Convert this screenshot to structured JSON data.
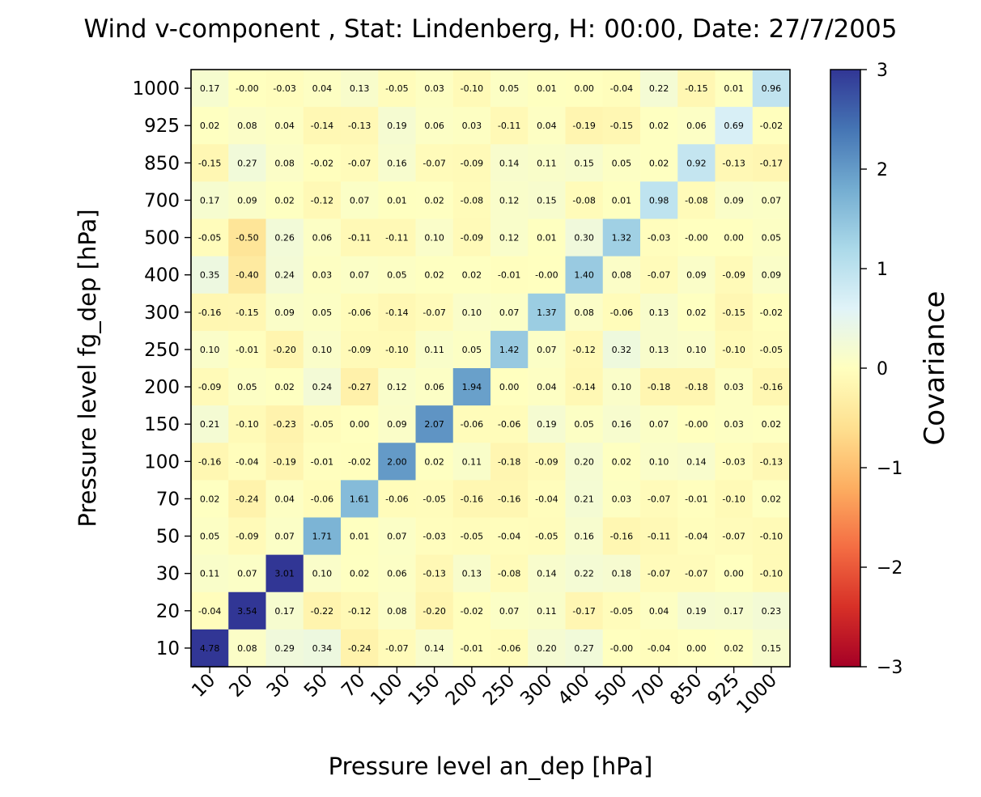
{
  "chart_data": {
    "type": "heatmap",
    "title": "Wind v-component , Stat: Lindenberg, H: 00:00, Date: 27/7/2005",
    "xlabel": "Pressure level an_dep [hPa]",
    "ylabel": "Pressure level fg_dep [hPa]",
    "x_categories": [
      "10",
      "20",
      "30",
      "50",
      "70",
      "100",
      "150",
      "200",
      "250",
      "300",
      "400",
      "500",
      "700",
      "850",
      "925",
      "1000"
    ],
    "y_categories": [
      "1000",
      "925",
      "850",
      "700",
      "500",
      "400",
      "300",
      "250",
      "200",
      "150",
      "100",
      "70",
      "50",
      "30",
      "20",
      "10"
    ],
    "values": [
      [
        "0.17",
        "-0.00",
        "-0.03",
        "0.04",
        "0.13",
        "-0.05",
        "0.03",
        "-0.10",
        "0.05",
        "0.01",
        "0.00",
        "-0.04",
        "0.22",
        "-0.15",
        "0.01",
        "0.96"
      ],
      [
        "0.02",
        "0.08",
        "0.04",
        "-0.14",
        "-0.13",
        "0.19",
        "0.06",
        "0.03",
        "-0.11",
        "0.04",
        "-0.19",
        "-0.15",
        "0.02",
        "0.06",
        "0.69",
        "-0.02"
      ],
      [
        "-0.15",
        "0.27",
        "0.08",
        "-0.02",
        "-0.07",
        "0.16",
        "-0.07",
        "-0.09",
        "0.14",
        "0.11",
        "0.15",
        "0.05",
        "0.02",
        "0.92",
        "-0.13",
        "-0.17"
      ],
      [
        "0.17",
        "0.09",
        "0.02",
        "-0.12",
        "0.07",
        "0.01",
        "0.02",
        "-0.08",
        "0.12",
        "0.15",
        "-0.08",
        "0.01",
        "0.98",
        "-0.08",
        "0.09",
        "0.07"
      ],
      [
        "-0.05",
        "-0.50",
        "0.26",
        "0.06",
        "-0.11",
        "-0.11",
        "0.10",
        "-0.09",
        "0.12",
        "0.01",
        "0.30",
        "1.32",
        "-0.03",
        "-0.00",
        "0.00",
        "0.05"
      ],
      [
        "0.35",
        "-0.40",
        "0.24",
        "0.03",
        "0.07",
        "0.05",
        "0.02",
        "0.02",
        "-0.01",
        "-0.00",
        "1.40",
        "0.08",
        "-0.07",
        "0.09",
        "-0.09",
        "0.09"
      ],
      [
        "-0.16",
        "-0.15",
        "0.09",
        "0.05",
        "-0.06",
        "-0.14",
        "-0.07",
        "0.10",
        "0.07",
        "1.37",
        "0.08",
        "-0.06",
        "0.13",
        "0.02",
        "-0.15",
        "-0.02"
      ],
      [
        "0.10",
        "-0.01",
        "-0.20",
        "0.10",
        "-0.09",
        "-0.10",
        "0.11",
        "0.05",
        "1.42",
        "0.07",
        "-0.12",
        "0.32",
        "0.13",
        "0.10",
        "-0.10",
        "-0.05"
      ],
      [
        "-0.09",
        "0.05",
        "0.02",
        "0.24",
        "-0.27",
        "0.12",
        "0.06",
        "1.94",
        "0.00",
        "0.04",
        "-0.14",
        "0.10",
        "-0.18",
        "-0.18",
        "0.03",
        "-0.16"
      ],
      [
        "0.21",
        "-0.10",
        "-0.23",
        "-0.05",
        "0.00",
        "0.09",
        "2.07",
        "-0.06",
        "-0.06",
        "0.19",
        "0.05",
        "0.16",
        "0.07",
        "-0.00",
        "0.03",
        "0.02"
      ],
      [
        "-0.16",
        "-0.04",
        "-0.19",
        "-0.01",
        "-0.02",
        "2.00",
        "0.02",
        "0.11",
        "-0.18",
        "-0.09",
        "0.20",
        "0.02",
        "0.10",
        "0.14",
        "-0.03",
        "-0.13"
      ],
      [
        "0.02",
        "-0.24",
        "0.04",
        "-0.06",
        "1.61",
        "-0.06",
        "-0.05",
        "-0.16",
        "-0.16",
        "-0.04",
        "0.21",
        "0.03",
        "-0.07",
        "-0.01",
        "-0.10",
        "0.02"
      ],
      [
        "0.05",
        "-0.09",
        "0.07",
        "1.71",
        "0.01",
        "0.07",
        "-0.03",
        "-0.05",
        "-0.04",
        "-0.05",
        "0.16",
        "-0.16",
        "-0.11",
        "-0.04",
        "-0.07",
        "-0.10"
      ],
      [
        "0.11",
        "0.07",
        "3.01",
        "0.10",
        "0.02",
        "0.06",
        "-0.13",
        "0.13",
        "-0.08",
        "0.14",
        "0.22",
        "0.18",
        "-0.07",
        "-0.07",
        "0.00",
        "-0.10"
      ],
      [
        "-0.04",
        "3.54",
        "0.17",
        "-0.22",
        "-0.12",
        "0.08",
        "-0.20",
        "-0.02",
        "0.07",
        "0.11",
        "-0.17",
        "-0.05",
        "0.04",
        "0.19",
        "0.17",
        "0.23"
      ],
      [
        "4.78",
        "0.08",
        "0.29",
        "0.34",
        "-0.24",
        "-0.07",
        "0.14",
        "-0.01",
        "-0.06",
        "0.20",
        "0.27",
        "-0.00",
        "-0.04",
        "0.00",
        "0.02",
        "0.15"
      ]
    ],
    "colorbar": {
      "label": "Covariance",
      "range": [
        -3,
        3
      ],
      "ticks": [
        "3",
        "2",
        "1",
        "0",
        "−1",
        "−2",
        "−3"
      ],
      "colormap": "RdYlBu"
    }
  }
}
